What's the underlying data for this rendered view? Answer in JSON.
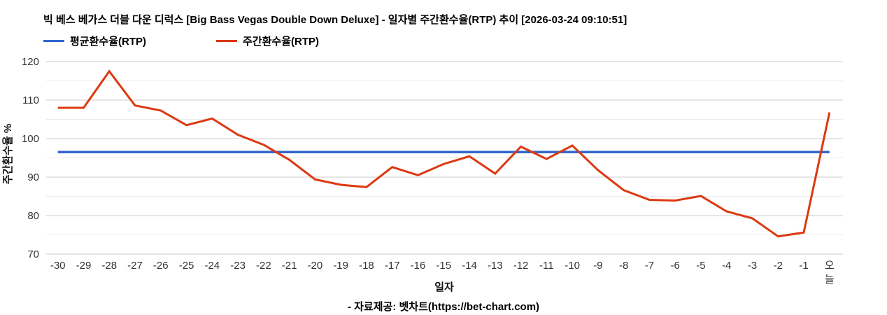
{
  "header": {
    "title": "빅 베스 베가스 더블 다운 디럭스 [Big Bass Vegas Double Down Deluxe] - 일자별 주간환수율(RTP) 추이 [2026-03-24 09:10:51]"
  },
  "chart_data": {
    "type": "line",
    "title": "빅 베스 베가스 더블 다운 디럭스 [Big Bass Vegas Double Down Deluxe] - 일자별 주간환수율(RTP) 추이 [2026-03-24 09:10:51]",
    "xlabel": "일자",
    "ylabel": "주간환수율 %",
    "ylim": [
      70,
      120
    ],
    "y_ticks": [
      70,
      80,
      90,
      100,
      110,
      120
    ],
    "y_minor_ticks": [
      75,
      85,
      95,
      105,
      115
    ],
    "grid": true,
    "legend_position": "top-left",
    "categories": [
      "-30",
      "-29",
      "-28",
      "-27",
      "-26",
      "-25",
      "-24",
      "-23",
      "-22",
      "-21",
      "-20",
      "-19",
      "-18",
      "-17",
      "-16",
      "-15",
      "-14",
      "-13",
      "-12",
      "-11",
      "-10",
      "-9",
      "-8",
      "-7",
      "-6",
      "-5",
      "-4",
      "-3",
      "-2",
      "-1",
      "오늘"
    ],
    "series": [
      {
        "key": "average-rtp",
        "name": "평균환수율(RTP)",
        "color": "#3366cc",
        "constant": 96.5
      },
      {
        "key": "weekly-rtp",
        "name": "주간환수율(RTP)",
        "color": "#dc3912",
        "values": [
          108.0,
          108.0,
          117.5,
          108.6,
          107.3,
          103.5,
          105.2,
          101.0,
          98.4,
          94.5,
          89.4,
          88.0,
          87.4,
          92.6,
          90.5,
          93.4,
          95.4,
          90.9,
          97.9,
          94.7,
          98.2,
          91.8,
          86.6,
          84.1,
          83.9,
          85.1,
          81.1,
          79.3,
          74.6,
          75.6,
          106.8
        ]
      }
    ],
    "colors": {
      "grid_major": "#cccccc",
      "grid_minor": "#ebebeb",
      "tick_text": "#333333"
    }
  },
  "footer": {
    "source": "- 자료제공: 벳차트(https://bet-chart.com)"
  }
}
